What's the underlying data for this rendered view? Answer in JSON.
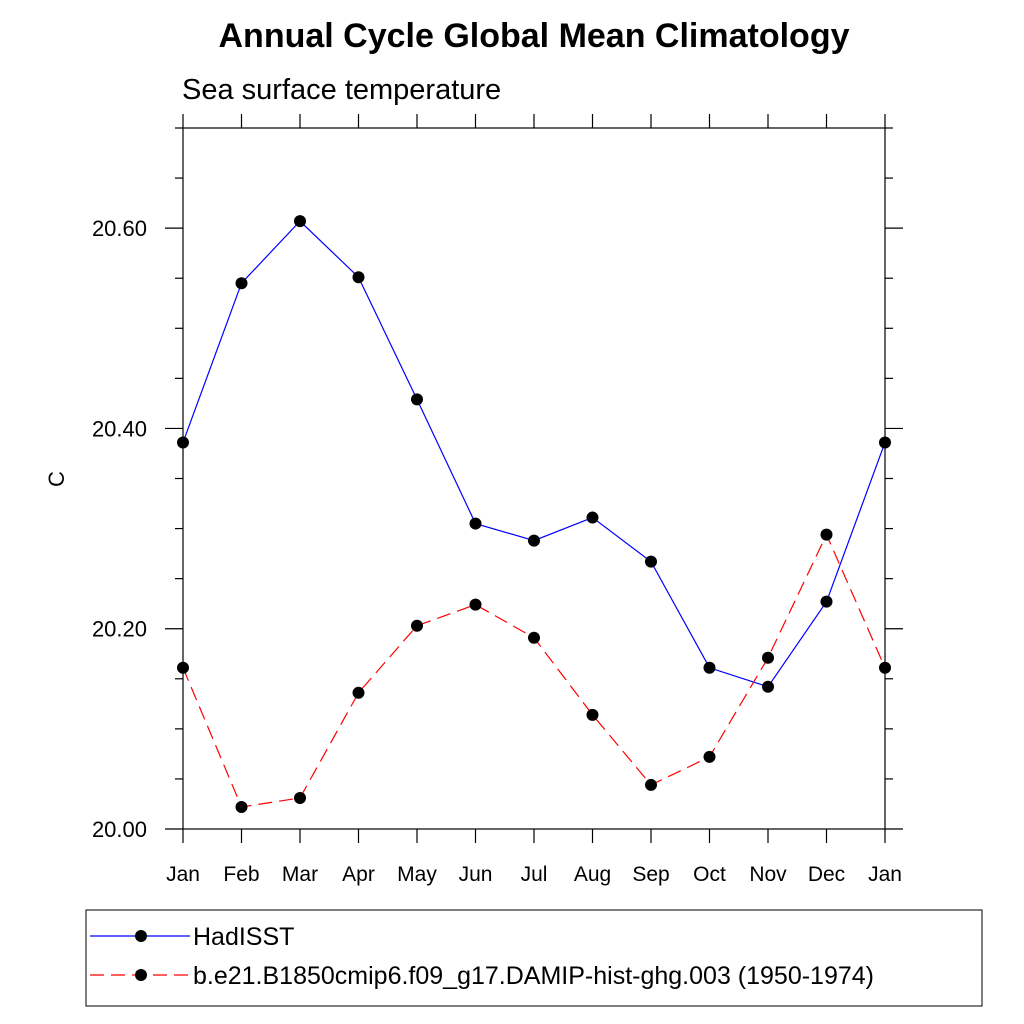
{
  "chart_data": {
    "type": "line",
    "title": "Annual Cycle Global Mean Climatology",
    "subtitle": "Sea surface temperature",
    "ylabel": "C",
    "xlabel": "",
    "categories": [
      "Jan",
      "Feb",
      "Mar",
      "Apr",
      "May",
      "Jun",
      "Jul",
      "Aug",
      "Sep",
      "Oct",
      "Nov",
      "Dec",
      "Jan"
    ],
    "ylim": [
      20.0,
      20.7
    ],
    "yticks": [
      "20.00",
      "20.20",
      "20.40",
      "20.60"
    ],
    "ytick_values": [
      20.0,
      20.2,
      20.4,
      20.6
    ],
    "yminor_step": 0.05,
    "legend_position": "bottom",
    "series": [
      {
        "name": "HadISST",
        "color": "#0000ff",
        "dash": "solid",
        "values": [
          20.386,
          20.545,
          20.607,
          20.551,
          20.429,
          20.305,
          20.288,
          20.311,
          20.267,
          20.161,
          20.142,
          20.227,
          20.386
        ]
      },
      {
        "name": "b.e21.B1850cmip6.f09_g17.DAMIP-hist-ghg.003 (1950-1974)",
        "color": "#ff0000",
        "dash": "dashed",
        "values": [
          20.161,
          20.022,
          20.031,
          20.136,
          20.203,
          20.224,
          20.191,
          20.114,
          20.044,
          20.072,
          20.171,
          20.294,
          20.161
        ]
      }
    ]
  }
}
